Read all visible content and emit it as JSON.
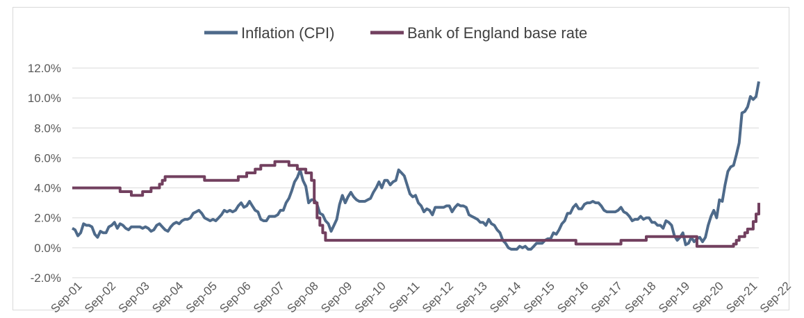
{
  "chart_data": {
    "type": "line",
    "title": "",
    "xlabel": "",
    "ylabel": "",
    "ylim": [
      -2.0,
      12.0
    ],
    "yticks": [
      -2.0,
      0.0,
      2.0,
      4.0,
      6.0,
      8.0,
      10.0,
      12.0
    ],
    "ytick_labels": [
      "-2.0%",
      "0.0%",
      "2.0%",
      "4.0%",
      "6.0%",
      "8.0%",
      "10.0%",
      "12.0%"
    ],
    "x_start": "Sep-01",
    "x_end": "Nov-22",
    "x_tick_labels": [
      "Sep-01",
      "Sep-02",
      "Sep-03",
      "Sep-04",
      "Sep-05",
      "Sep-06",
      "Sep-07",
      "Sep-08",
      "Sep-09",
      "Sep-10",
      "Sep-11",
      "Sep-12",
      "Sep-13",
      "Sep-14",
      "Sep-15",
      "Sep-16",
      "Sep-17",
      "Sep-18",
      "Sep-19",
      "Sep-20",
      "Sep-21",
      "Sep-22"
    ],
    "legend_position": "top",
    "grid": true,
    "series": [
      {
        "name": "Inflation (CPI)",
        "color": "#4e6a8a",
        "points": [
          [
            0,
            1.3
          ],
          [
            1,
            1.2
          ],
          [
            2,
            0.8
          ],
          [
            3,
            1.0
          ],
          [
            4,
            1.6
          ],
          [
            5,
            1.5
          ],
          [
            6,
            1.5
          ],
          [
            7,
            1.4
          ],
          [
            8,
            0.9
          ],
          [
            9,
            0.7
          ],
          [
            10,
            1.1
          ],
          [
            11,
            1.0
          ],
          [
            12,
            1.0
          ],
          [
            13,
            1.4
          ],
          [
            14,
            1.5
          ],
          [
            15,
            1.7
          ],
          [
            16,
            1.3
          ],
          [
            17,
            1.6
          ],
          [
            18,
            1.5
          ],
          [
            19,
            1.3
          ],
          [
            20,
            1.2
          ],
          [
            21,
            1.4
          ],
          [
            22,
            1.4
          ],
          [
            23,
            1.4
          ],
          [
            24,
            1.4
          ],
          [
            25,
            1.3
          ],
          [
            26,
            1.4
          ],
          [
            27,
            1.3
          ],
          [
            28,
            1.1
          ],
          [
            29,
            1.2
          ],
          [
            30,
            1.5
          ],
          [
            31,
            1.6
          ],
          [
            32,
            1.4
          ],
          [
            33,
            1.2
          ],
          [
            34,
            1.1
          ],
          [
            35,
            1.4
          ],
          [
            36,
            1.6
          ],
          [
            37,
            1.7
          ],
          [
            38,
            1.6
          ],
          [
            39,
            1.8
          ],
          [
            40,
            1.9
          ],
          [
            41,
            1.9
          ],
          [
            42,
            2.0
          ],
          [
            43,
            2.3
          ],
          [
            44,
            2.4
          ],
          [
            45,
            2.5
          ],
          [
            46,
            2.3
          ],
          [
            47,
            2.0
          ],
          [
            48,
            1.9
          ],
          [
            49,
            1.8
          ],
          [
            50,
            1.9
          ],
          [
            51,
            1.8
          ],
          [
            52,
            2.0
          ],
          [
            53,
            2.2
          ],
          [
            54,
            2.5
          ],
          [
            55,
            2.4
          ],
          [
            56,
            2.5
          ],
          [
            57,
            2.4
          ],
          [
            58,
            2.5
          ],
          [
            59,
            2.8
          ],
          [
            60,
            3.0
          ],
          [
            61,
            2.7
          ],
          [
            62,
            2.8
          ],
          [
            63,
            3.1
          ],
          [
            64,
            2.8
          ],
          [
            65,
            2.5
          ],
          [
            66,
            2.4
          ],
          [
            67,
            1.9
          ],
          [
            68,
            1.8
          ],
          [
            69,
            1.8
          ],
          [
            70,
            2.1
          ],
          [
            71,
            2.1
          ],
          [
            72,
            2.1
          ],
          [
            73,
            2.2
          ],
          [
            74,
            2.5
          ],
          [
            75,
            2.5
          ],
          [
            76,
            3.0
          ],
          [
            77,
            3.3
          ],
          [
            78,
            3.8
          ],
          [
            79,
            4.4
          ],
          [
            80,
            4.7
          ],
          [
            81,
            5.2
          ],
          [
            82,
            4.5
          ],
          [
            83,
            4.1
          ],
          [
            84,
            3.0
          ],
          [
            85,
            3.2
          ],
          [
            86,
            3.2
          ],
          [
            87,
            2.9
          ],
          [
            88,
            2.3
          ],
          [
            89,
            2.2
          ],
          [
            90,
            1.8
          ],
          [
            91,
            1.6
          ],
          [
            92,
            1.1
          ],
          [
            93,
            1.5
          ],
          [
            94,
            1.9
          ],
          [
            95,
            2.9
          ],
          [
            96,
            3.5
          ],
          [
            97,
            3.0
          ],
          [
            98,
            3.4
          ],
          [
            99,
            3.7
          ],
          [
            100,
            3.4
          ],
          [
            101,
            3.2
          ],
          [
            102,
            3.1
          ],
          [
            103,
            3.1
          ],
          [
            104,
            3.1
          ],
          [
            105,
            3.2
          ],
          [
            106,
            3.3
          ],
          [
            107,
            3.7
          ],
          [
            108,
            4.0
          ],
          [
            109,
            4.4
          ],
          [
            110,
            4.0
          ],
          [
            111,
            4.5
          ],
          [
            112,
            4.5
          ],
          [
            113,
            4.2
          ],
          [
            114,
            4.4
          ],
          [
            115,
            4.5
          ],
          [
            116,
            5.2
          ],
          [
            117,
            5.0
          ],
          [
            118,
            4.8
          ],
          [
            119,
            4.2
          ],
          [
            120,
            3.6
          ],
          [
            121,
            3.4
          ],
          [
            122,
            3.5
          ],
          [
            123,
            3.0
          ],
          [
            124,
            2.8
          ],
          [
            125,
            2.4
          ],
          [
            126,
            2.6
          ],
          [
            127,
            2.5
          ],
          [
            128,
            2.2
          ],
          [
            129,
            2.7
          ],
          [
            130,
            2.7
          ],
          [
            131,
            2.7
          ],
          [
            132,
            2.7
          ],
          [
            133,
            2.8
          ],
          [
            134,
            2.8
          ],
          [
            135,
            2.4
          ],
          [
            136,
            2.7
          ],
          [
            137,
            2.9
          ],
          [
            138,
            2.8
          ],
          [
            139,
            2.8
          ],
          [
            140,
            2.7
          ],
          [
            141,
            2.2
          ],
          [
            142,
            2.1
          ],
          [
            143,
            2.0
          ],
          [
            144,
            1.9
          ],
          [
            145,
            1.7
          ],
          [
            146,
            1.7
          ],
          [
            147,
            1.5
          ],
          [
            148,
            1.9
          ],
          [
            149,
            1.6
          ],
          [
            150,
            1.5
          ],
          [
            151,
            1.2
          ],
          [
            152,
            1.0
          ],
          [
            153,
            0.5
          ],
          [
            154,
            0.3
          ],
          [
            155,
            0.0
          ],
          [
            156,
            -0.1
          ],
          [
            157,
            -0.1
          ],
          [
            158,
            -0.1
          ],
          [
            159,
            0.1
          ],
          [
            160,
            0.0
          ],
          [
            161,
            0.1
          ],
          [
            162,
            -0.1
          ],
          [
            163,
            -0.1
          ],
          [
            164,
            0.1
          ],
          [
            165,
            0.3
          ],
          [
            166,
            0.3
          ],
          [
            167,
            0.3
          ],
          [
            168,
            0.5
          ],
          [
            169,
            0.6
          ],
          [
            170,
            0.6
          ],
          [
            171,
            1.0
          ],
          [
            172,
            0.9
          ],
          [
            173,
            1.2
          ],
          [
            174,
            1.6
          ],
          [
            175,
            1.8
          ],
          [
            176,
            2.3
          ],
          [
            177,
            2.3
          ],
          [
            178,
            2.7
          ],
          [
            179,
            2.9
          ],
          [
            180,
            2.6
          ],
          [
            181,
            2.6
          ],
          [
            182,
            2.9
          ],
          [
            183,
            3.0
          ],
          [
            184,
            3.0
          ],
          [
            185,
            3.1
          ],
          [
            186,
            3.0
          ],
          [
            187,
            3.0
          ],
          [
            188,
            2.8
          ],
          [
            189,
            2.5
          ],
          [
            190,
            2.4
          ],
          [
            191,
            2.4
          ],
          [
            192,
            2.4
          ],
          [
            193,
            2.4
          ],
          [
            194,
            2.5
          ],
          [
            195,
            2.7
          ],
          [
            196,
            2.4
          ],
          [
            197,
            2.3
          ],
          [
            198,
            2.1
          ],
          [
            199,
            1.8
          ],
          [
            200,
            1.9
          ],
          [
            201,
            1.9
          ],
          [
            202,
            2.1
          ],
          [
            203,
            1.9
          ],
          [
            204,
            2.0
          ],
          [
            205,
            2.0
          ],
          [
            206,
            1.7
          ],
          [
            207,
            1.7
          ],
          [
            208,
            1.5
          ],
          [
            209,
            1.5
          ],
          [
            210,
            1.3
          ],
          [
            211,
            1.8
          ],
          [
            212,
            1.7
          ],
          [
            213,
            1.5
          ],
          [
            214,
            0.8
          ],
          [
            215,
            0.5
          ],
          [
            216,
            0.7
          ],
          [
            217,
            1.0
          ],
          [
            218,
            0.2
          ],
          [
            219,
            0.3
          ],
          [
            220,
            0.7
          ],
          [
            221,
            0.4
          ],
          [
            222,
            0.6
          ],
          [
            223,
            0.7
          ],
          [
            224,
            0.4
          ],
          [
            225,
            0.7
          ],
          [
            226,
            1.5
          ],
          [
            227,
            2.1
          ],
          [
            228,
            2.5
          ],
          [
            229,
            2.0
          ],
          [
            230,
            3.2
          ],
          [
            231,
            3.1
          ],
          [
            232,
            4.2
          ],
          [
            233,
            5.1
          ],
          [
            234,
            5.4
          ],
          [
            235,
            5.5
          ],
          [
            236,
            6.2
          ],
          [
            237,
            7.0
          ],
          [
            238,
            9.0
          ],
          [
            239,
            9.1
          ],
          [
            240,
            9.4
          ],
          [
            241,
            10.1
          ],
          [
            242,
            9.9
          ],
          [
            243,
            10.1
          ],
          [
            244,
            11.1
          ]
        ]
      },
      {
        "name": "Bank of England base rate",
        "color": "#72405f",
        "points": [
          [
            0,
            4.0
          ],
          [
            5,
            4.0
          ],
          [
            10,
            4.0
          ],
          [
            15,
            4.0
          ],
          [
            17,
            3.75
          ],
          [
            20,
            3.75
          ],
          [
            21,
            3.5
          ],
          [
            22,
            3.5
          ],
          [
            23,
            3.5
          ],
          [
            24,
            3.5
          ],
          [
            25,
            3.75
          ],
          [
            26,
            3.75
          ],
          [
            28,
            4.0
          ],
          [
            30,
            4.0
          ],
          [
            31,
            4.25
          ],
          [
            32,
            4.5
          ],
          [
            33,
            4.75
          ],
          [
            40,
            4.75
          ],
          [
            45,
            4.75
          ],
          [
            47,
            4.5
          ],
          [
            54,
            4.5
          ],
          [
            58,
            4.5
          ],
          [
            59,
            4.75
          ],
          [
            61,
            4.75
          ],
          [
            62,
            5.0
          ],
          [
            64,
            5.0
          ],
          [
            65,
            5.25
          ],
          [
            67,
            5.5
          ],
          [
            71,
            5.5
          ],
          [
            72,
            5.75
          ],
          [
            76,
            5.75
          ],
          [
            77,
            5.5
          ],
          [
            78,
            5.5
          ],
          [
            80,
            5.25
          ],
          [
            83,
            5.0
          ],
          [
            84,
            5.0
          ],
          [
            85,
            4.5
          ],
          [
            86,
            3.0
          ],
          [
            87,
            2.0
          ],
          [
            88,
            1.5
          ],
          [
            89,
            1.0
          ],
          [
            90,
            0.5
          ],
          [
            100,
            0.5
          ],
          [
            120,
            0.5
          ],
          [
            140,
            0.5
          ],
          [
            160,
            0.5
          ],
          [
            178,
            0.5
          ],
          [
            179,
            0.25
          ],
          [
            190,
            0.25
          ],
          [
            194,
            0.25
          ],
          [
            195,
            0.5
          ],
          [
            203,
            0.5
          ],
          [
            204,
            0.75
          ],
          [
            221,
            0.75
          ],
          [
            222,
            0.1
          ],
          [
            227,
            0.1
          ],
          [
            234,
            0.1
          ],
          [
            235,
            0.25
          ],
          [
            236,
            0.5
          ],
          [
            237,
            0.75
          ],
          [
            238,
            0.75
          ],
          [
            239,
            1.0
          ],
          [
            240,
            1.25
          ],
          [
            241,
            1.25
          ],
          [
            242,
            1.75
          ],
          [
            243,
            2.25
          ],
          [
            244,
            3.0
          ]
        ]
      }
    ]
  }
}
